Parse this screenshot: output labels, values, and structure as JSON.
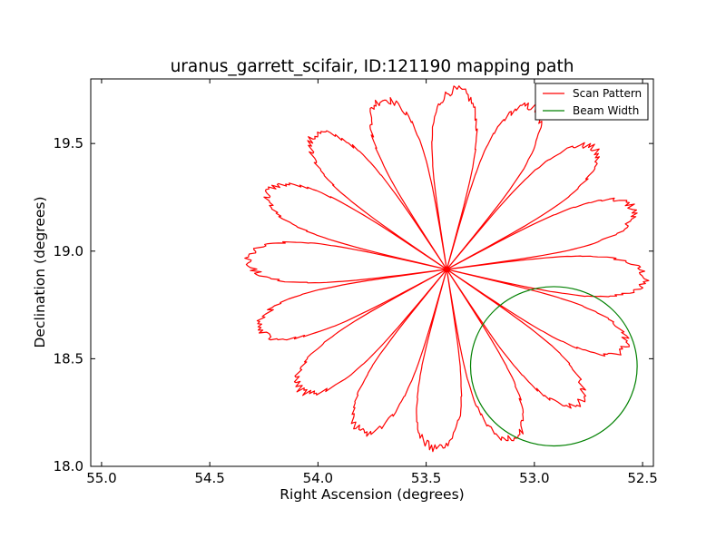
{
  "chart_data": {
    "type": "line",
    "title": "uranus_garrett_scifair, ID:121190 mapping path",
    "xlabel": "Right Ascension (degrees)",
    "ylabel": "Declination (degrees)",
    "xlim": [
      55.05,
      52.45
    ],
    "ylim": [
      18.0,
      19.8
    ],
    "x_inverted": true,
    "xticks": [
      55.0,
      54.5,
      54.0,
      53.5,
      53.0,
      52.5
    ],
    "xtick_labels": [
      "55.0",
      "54.5",
      "54.0",
      "53.5",
      "53.0",
      "52.5"
    ],
    "yticks": [
      18.0,
      18.5,
      19.0,
      19.5
    ],
    "ytick_labels": [
      "18.0",
      "18.5",
      "19.0",
      "19.5"
    ],
    "grid": false,
    "legend_position": "top-right",
    "series": [
      {
        "name": "Scan Pattern",
        "kind": "rosette",
        "color": "#ff0000",
        "center": [
          53.405,
          18.915
        ],
        "petals": 16,
        "angle_step_deg": 22.5,
        "petal_tip_angles_deg": [
          -3,
          19.5,
          42,
          64.5,
          87,
          109.5,
          132,
          154.5,
          177,
          199.5,
          222,
          244.5,
          267,
          289.5,
          312,
          334.5
        ],
        "petal_tip_distance": [
          {
            "angle_deg": 0,
            "dx_deg": 1.0,
            "dy_deg": 0.88
          },
          {
            "angle_deg": 90,
            "dx_deg": 0.9,
            "dy_deg": 0.9
          }
        ]
      },
      {
        "name": "Beam Width",
        "kind": "circle",
        "color": "#008000",
        "center": [
          52.91,
          18.465
        ],
        "radius_x_deg": 0.385,
        "radius_y_deg": 0.37
      }
    ]
  }
}
